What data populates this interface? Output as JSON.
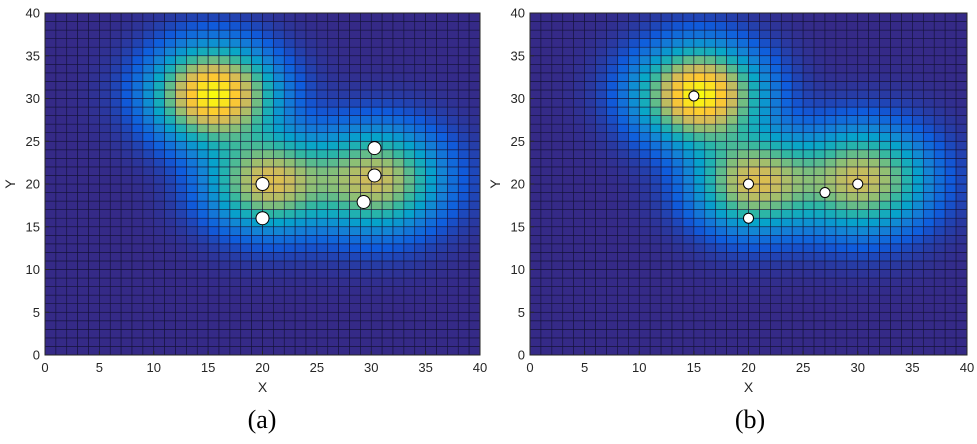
{
  "chart_data": [
    {
      "type": "heatmap",
      "panel_label": "(a)",
      "xlabel": "X",
      "ylabel": "Y",
      "xlim": [
        0,
        40
      ],
      "ylim": [
        0,
        40
      ],
      "xticks": [
        0,
        5,
        10,
        15,
        20,
        25,
        30,
        35,
        40
      ],
      "yticks": [
        0,
        5,
        10,
        15,
        20,
        25,
        30,
        35,
        40
      ],
      "grid_cells": 40,
      "grid": true,
      "colormap": [
        "#352a87",
        "#0f5cdd",
        "#1481d6",
        "#06a4ca",
        "#2eb7a4",
        "#87bf77",
        "#d1bb59",
        "#fec832",
        "#f9fb0e"
      ],
      "field_peaks": [
        {
          "x": 15.5,
          "y": 30.5,
          "amplitude": 1.0,
          "spread": 3.6
        },
        {
          "x": 20.5,
          "y": 20.2,
          "amplitude": 0.72,
          "spread": 3.6
        },
        {
          "x": 30.5,
          "y": 20.5,
          "amplitude": 0.7,
          "spread": 3.9
        }
      ],
      "markers": [
        {
          "x": 20,
          "y": 20
        },
        {
          "x": 20,
          "y": 16
        },
        {
          "x": 30.3,
          "y": 24.2
        },
        {
          "x": 30.3,
          "y": 21
        },
        {
          "x": 29.3,
          "y": 17.9
        }
      ],
      "marker_size": "large",
      "marker_color": "#ffffff"
    },
    {
      "type": "heatmap",
      "panel_label": "(b)",
      "xlabel": "X",
      "ylabel": "Y",
      "xlim": [
        0,
        40
      ],
      "ylim": [
        0,
        40
      ],
      "xticks": [
        0,
        5,
        10,
        15,
        20,
        25,
        30,
        35,
        40
      ],
      "yticks": [
        0,
        5,
        10,
        15,
        20,
        25,
        30,
        35,
        40
      ],
      "grid_cells": 40,
      "grid": true,
      "colormap": [
        "#352a87",
        "#0f5cdd",
        "#1481d6",
        "#06a4ca",
        "#2eb7a4",
        "#87bf77",
        "#d1bb59",
        "#fec832",
        "#f9fb0e"
      ],
      "field_peaks": [
        {
          "x": 15.5,
          "y": 30.5,
          "amplitude": 1.0,
          "spread": 3.6
        },
        {
          "x": 20.5,
          "y": 20.2,
          "amplitude": 0.72,
          "spread": 3.6
        },
        {
          "x": 30.5,
          "y": 20.5,
          "amplitude": 0.7,
          "spread": 3.9
        }
      ],
      "markers": [
        {
          "x": 15,
          "y": 30.3
        },
        {
          "x": 20,
          "y": 20
        },
        {
          "x": 20,
          "y": 16
        },
        {
          "x": 27,
          "y": 19
        },
        {
          "x": 30,
          "y": 20
        }
      ],
      "marker_size": "small",
      "marker_color": "#ffffff"
    }
  ]
}
